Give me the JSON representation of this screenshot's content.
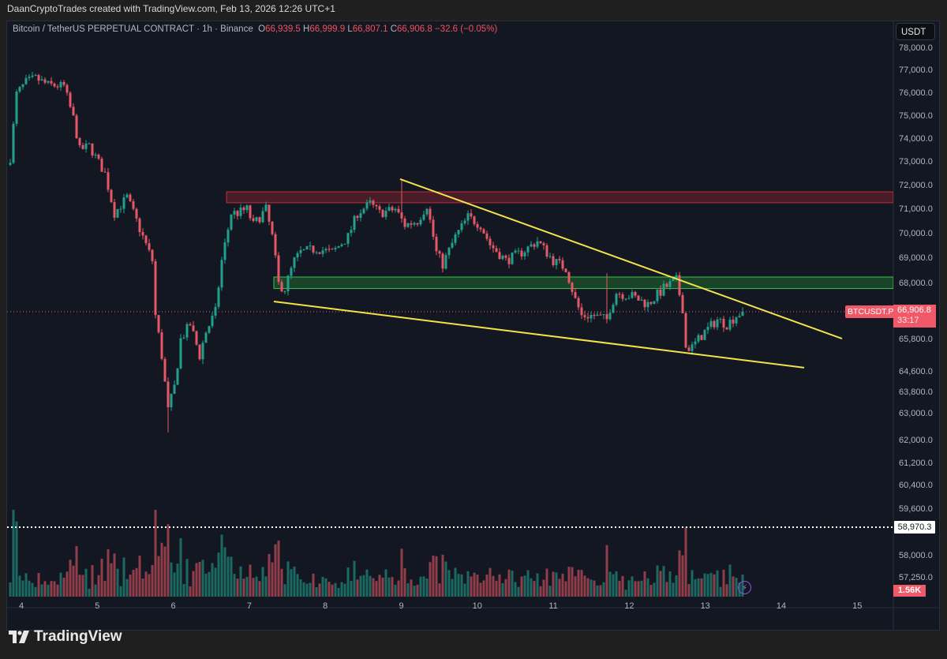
{
  "header": {
    "attribution": "DaanCryptoTrades created with TradingView.com, Feb 13, 2026 12:26 UTC+1"
  },
  "legend": {
    "symbol": "Bitcoin / TetherUS PERPETUAL CONTRACT",
    "interval": "1h",
    "exchange": "Binance",
    "separator": "·",
    "open_label": "O",
    "open": "66,939.5",
    "high_label": "H",
    "high": "66,999.9",
    "low_label": "L",
    "low": "66,807.1",
    "close_label": "C",
    "close": "66,906.8",
    "change": "−32.6 (−0.05%)"
  },
  "price_axis": {
    "currency": "USDT",
    "ticks": [
      "78,000.0",
      "77,000.0",
      "76,000.0",
      "75,000.0",
      "74,000.0",
      "73,000.0",
      "72,000.0",
      "71,000.0",
      "70,000.0",
      "69,000.0",
      "68,000.0",
      "65,800.0",
      "64,600.0",
      "63,800.0",
      "63,000.0",
      "62,000.0",
      "61,200.0",
      "60,400.0",
      "59,600.0",
      "58,000.0",
      "57,250.0"
    ],
    "symbol_label": "BTCUSDT.P",
    "last_price": "66,906.8",
    "countdown": "33:17",
    "horizontal_line_label": "58,970.3",
    "volume_label": "1.56K"
  },
  "time_axis": {
    "labels": [
      "4",
      "5",
      "6",
      "7",
      "8",
      "9",
      "10",
      "11",
      "12",
      "13",
      "14",
      "15"
    ]
  },
  "icons": {
    "bolt": "lightning-bolt-icon",
    "bolt_glyph": "⚡"
  },
  "logo": {
    "text": "TradingView"
  },
  "colors": {
    "up": "#22a08c",
    "down": "#e65866",
    "trendline": "#f2e24b",
    "resistance_zone": "#7a1f2b",
    "support_zone": "#1f6a2b",
    "background": "#131722"
  },
  "chart_data": {
    "type": "candlestick",
    "title": "Bitcoin / TetherUS PERPETUAL CONTRACT · 1h · Binance",
    "scale": "log",
    "ylim": [
      56800,
      78400
    ],
    "xlim": [
      "2026-02-03T20:00",
      "2026-02-15T23:00"
    ],
    "grid": false,
    "close_path": [
      [
        "2026-02-03T20:00",
        73170
      ],
      [
        "2026-02-03T22:00",
        75960
      ],
      [
        "2026-02-04T01:00",
        76480
      ],
      [
        "2026-02-04T04:00",
        76650
      ],
      [
        "2026-02-04T08:00",
        76360
      ],
      [
        "2026-02-04T13:00",
        76300
      ],
      [
        "2026-02-04T16:00",
        74900
      ],
      [
        "2026-02-04T18:00",
        73520
      ],
      [
        "2026-02-04T21:00",
        73690
      ],
      [
        "2026-02-05T02:00",
        72500
      ],
      [
        "2026-02-05T05:00",
        70840
      ],
      [
        "2026-02-05T09:00",
        71500
      ],
      [
        "2026-02-05T13:00",
        70190
      ],
      [
        "2026-02-05T17:00",
        68900
      ],
      [
        "2026-02-05T18:00",
        66750
      ],
      [
        "2026-02-05T20:00",
        65200
      ],
      [
        "2026-02-05T22:00",
        63100
      ],
      [
        "2026-02-06T00:00",
        64000
      ],
      [
        "2026-02-06T02:00",
        65800
      ],
      [
        "2026-02-06T05:00",
        66400
      ],
      [
        "2026-02-06T08:00",
        65200
      ],
      [
        "2026-02-06T10:00",
        66100
      ],
      [
        "2026-02-06T13:00",
        66900
      ],
      [
        "2026-02-06T15:00",
        68900
      ],
      [
        "2026-02-06T18:00",
        70840
      ],
      [
        "2026-02-06T20:00",
        70840
      ],
      [
        "2026-02-06T23:00",
        71000
      ],
      [
        "2026-02-07T01:00",
        70350
      ],
      [
        "2026-02-07T05:00",
        71000
      ],
      [
        "2026-02-07T07:00",
        69870
      ],
      [
        "2026-02-07T09:00",
        67970
      ],
      [
        "2026-02-07T11:00",
        67800
      ],
      [
        "2026-02-07T14:00",
        68900
      ],
      [
        "2026-02-07T16:00",
        69230
      ],
      [
        "2026-02-07T21:00",
        69390
      ],
      [
        "2026-02-08T02:00",
        69230
      ],
      [
        "2026-02-08T07:00",
        69870
      ],
      [
        "2026-02-08T10:00",
        70840
      ],
      [
        "2026-02-08T14:00",
        71230
      ],
      [
        "2026-02-08T17:00",
        70840
      ],
      [
        "2026-02-08T22:00",
        71000
      ],
      [
        "2026-02-09T01:00",
        70350
      ],
      [
        "2026-02-09T05:00",
        70520
      ],
      [
        "2026-02-09T08:00",
        71170
      ],
      [
        "2026-02-09T11:00",
        69230
      ],
      [
        "2026-02-09T13:00",
        68750
      ],
      [
        "2026-02-09T17:00",
        69870
      ],
      [
        "2026-02-09T21:00",
        70680
      ],
      [
        "2026-02-10T01:00",
        70350
      ],
      [
        "2026-02-10T04:00",
        69550
      ],
      [
        "2026-02-10T09:00",
        68900
      ],
      [
        "2026-02-10T14:00",
        69230
      ],
      [
        "2026-02-10T19:00",
        69700
      ],
      [
        "2026-02-11T00:00",
        68900
      ],
      [
        "2026-02-11T04:00",
        68600
      ],
      [
        "2026-02-11T07:00",
        67360
      ],
      [
        "2026-02-11T09:00",
        66750
      ],
      [
        "2026-02-11T13:00",
        66750
      ],
      [
        "2026-02-11T17:00",
        66590
      ],
      [
        "2026-02-11T18:00",
        67050
      ],
      [
        "2026-02-11T20:00",
        67650
      ],
      [
        "2026-02-12T01:00",
        67500
      ],
      [
        "2026-02-12T06:00",
        67200
      ],
      [
        "2026-02-12T11:00",
        67800
      ],
      [
        "2026-02-12T15:00",
        68130
      ],
      [
        "2026-02-12T17:00",
        67050
      ],
      [
        "2026-02-12T18:00",
        65500
      ],
      [
        "2026-02-12T20:00",
        65500
      ],
      [
        "2026-02-13T00:00",
        66100
      ],
      [
        "2026-02-13T04:00",
        66590
      ],
      [
        "2026-02-13T07:00",
        66400
      ],
      [
        "2026-02-13T10:00",
        66750
      ],
      [
        "2026-02-13T12:00",
        66906.8
      ]
    ],
    "notable_wicks": [
      [
        "2026-02-05T22:00",
        "low",
        62300
      ],
      [
        "2026-02-09T00:00",
        "high",
        72270
      ],
      [
        "2026-02-11T17:00",
        "high",
        68400
      ],
      [
        "2026-02-12T16:00",
        "high",
        68450
      ]
    ],
    "zones": [
      {
        "kind": "resistance",
        "from": 71270,
        "to": 71730,
        "start": "2026-02-06T17:00"
      },
      {
        "kind": "support",
        "from": 67800,
        "to": 68250,
        "start": "2026-02-07T08:00"
      }
    ],
    "trendlines": [
      {
        "kind": "upper",
        "p1": [
          "2026-02-09T00:00",
          72270
        ],
        "p2": [
          "2026-02-14T20:00",
          65830
        ]
      },
      {
        "kind": "lower",
        "p1": [
          "2026-02-07T08:00",
          67300
        ],
        "p2": [
          "2026-02-14T08:00",
          64750
        ]
      }
    ],
    "last_price": 66906.8,
    "horizontal_line": 58970.3
  }
}
